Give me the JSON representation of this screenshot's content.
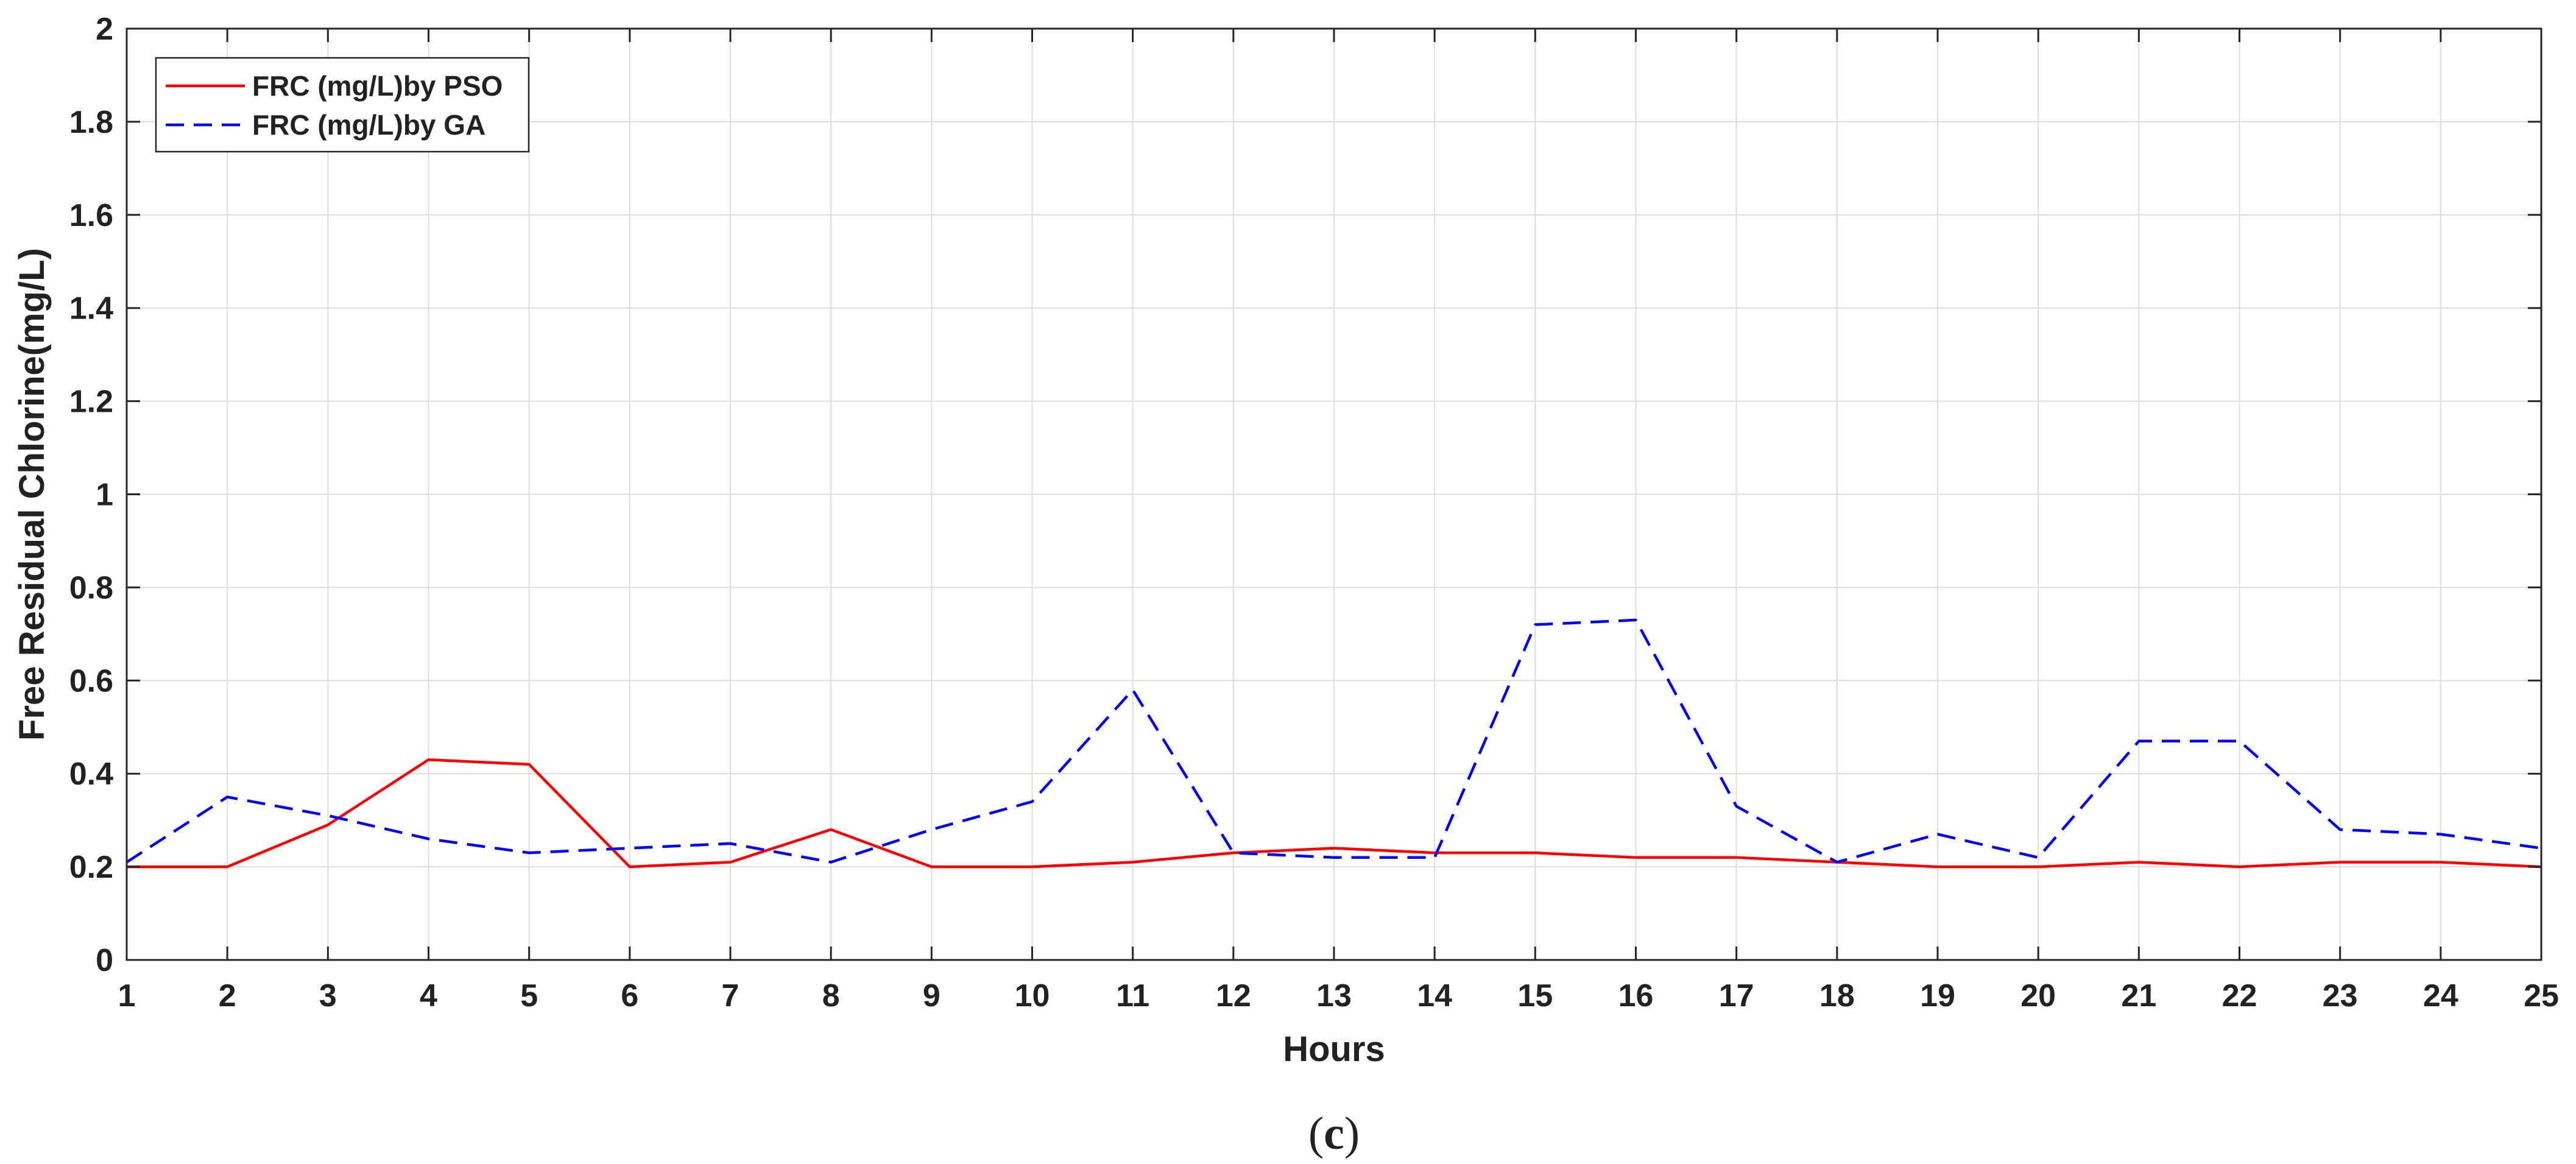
{
  "chart_data": {
    "type": "line",
    "title": "",
    "xlabel": "Hours",
    "ylabel": "Free Residual  Chlorine(mg/L)",
    "caption": {
      "open": "(",
      "letter": "c",
      "close": ")"
    },
    "xlim": [
      1,
      25
    ],
    "ylim": [
      0,
      2
    ],
    "xticks": [
      1,
      2,
      3,
      4,
      5,
      6,
      7,
      8,
      9,
      10,
      11,
      12,
      13,
      14,
      15,
      16,
      17,
      18,
      19,
      20,
      21,
      22,
      23,
      24,
      25
    ],
    "yticks": [
      0,
      0.2,
      0.4,
      0.6,
      0.8,
      1,
      1.2,
      1.4,
      1.6,
      1.8,
      2
    ],
    "ytick_labels": [
      "0",
      "0.2",
      "0.4",
      "0.6",
      "0.8",
      "1",
      "1.2",
      "1.4",
      "1.6",
      "1.8",
      "2"
    ],
    "grid": true,
    "legend_position": "top-left",
    "x": [
      1,
      2,
      3,
      4,
      5,
      6,
      7,
      8,
      9,
      10,
      11,
      12,
      13,
      14,
      15,
      16,
      17,
      18,
      19,
      20,
      21,
      22,
      23,
      24,
      25
    ],
    "series": [
      {
        "name": "FRC (mg/L)by PSO",
        "color": "#ff0000",
        "line_style": "solid",
        "values": [
          0.2,
          0.2,
          0.29,
          0.43,
          0.42,
          0.2,
          0.21,
          0.28,
          0.2,
          0.2,
          0.21,
          0.23,
          0.24,
          0.23,
          0.23,
          0.22,
          0.22,
          0.21,
          0.2,
          0.2,
          0.21,
          0.2,
          0.21,
          0.21,
          0.2
        ]
      },
      {
        "name": "FRC (mg/L)by GA",
        "color": "#0000ff",
        "line_style": "dashed",
        "values": [
          0.21,
          0.35,
          0.31,
          0.26,
          0.23,
          0.24,
          0.25,
          0.21,
          0.28,
          0.34,
          0.58,
          0.23,
          0.22,
          0.22,
          0.72,
          0.73,
          0.33,
          0.21,
          0.27,
          0.22,
          0.47,
          0.47,
          0.28,
          0.27,
          0.24
        ]
      }
    ]
  }
}
